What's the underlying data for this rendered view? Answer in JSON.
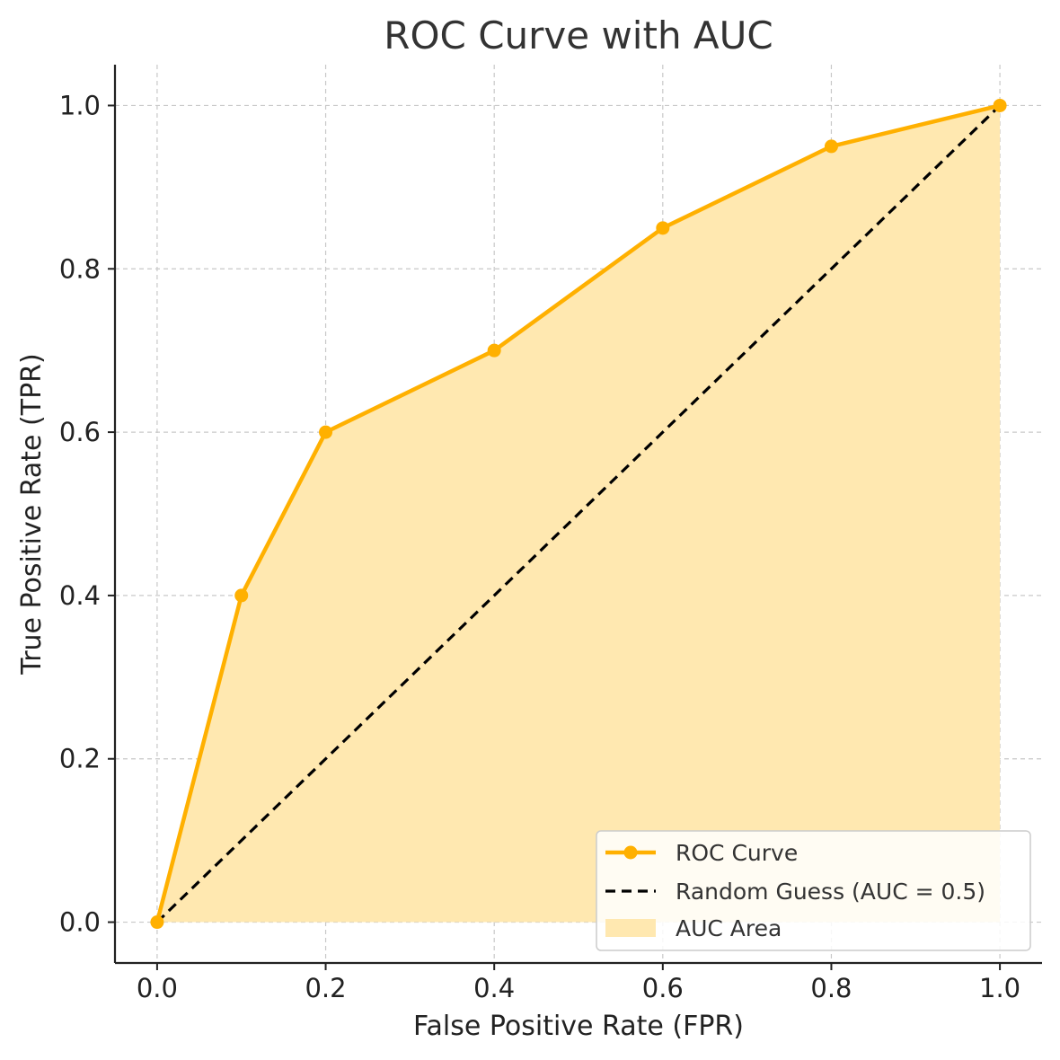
{
  "chart_data": {
    "type": "line",
    "title": "ROC Curve with AUC",
    "xlabel": "False Positive Rate (FPR)",
    "ylabel": "True Positive Rate (TPR)",
    "xlim": [
      -0.05,
      1.05
    ],
    "ylim": [
      -0.05,
      1.05
    ],
    "xticks": [
      0.0,
      0.2,
      0.4,
      0.6,
      0.8,
      1.0
    ],
    "yticks": [
      0.0,
      0.2,
      0.4,
      0.6,
      0.8,
      1.0
    ],
    "xtick_labels": [
      "0.0",
      "0.2",
      "0.4",
      "0.6",
      "0.8",
      "1.0"
    ],
    "ytick_labels": [
      "0.0",
      "0.2",
      "0.4",
      "0.6",
      "0.8",
      "1.0"
    ],
    "grid": true,
    "legend_position": "bottom-right",
    "series": [
      {
        "name": "ROC Curve",
        "kind": "line-markers",
        "color": "#FFB000",
        "x": [
          0.0,
          0.1,
          0.2,
          0.4,
          0.6,
          0.8,
          1.0
        ],
        "y": [
          0.0,
          0.4,
          0.6,
          0.7,
          0.85,
          0.95,
          1.0
        ]
      },
      {
        "name": "Random Guess (AUC = 0.5)",
        "kind": "dashed-line",
        "color": "#000000",
        "x": [
          0.0,
          1.0
        ],
        "y": [
          0.0,
          1.0
        ]
      },
      {
        "name": "AUC Area",
        "kind": "fill",
        "color": "#FFE8B0"
      }
    ]
  }
}
